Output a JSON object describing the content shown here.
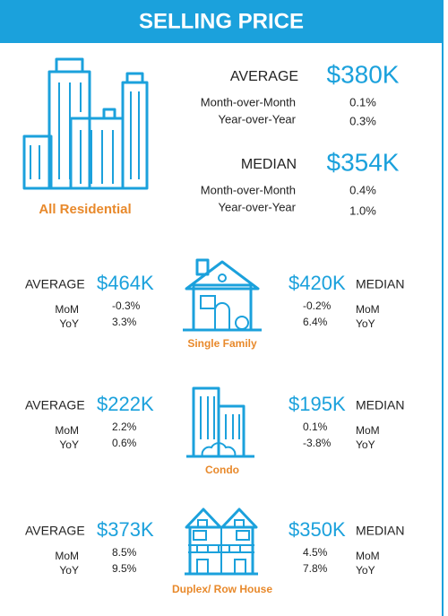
{
  "header": {
    "title": "SELLING PRICE"
  },
  "all_residential": {
    "label": "All Residential",
    "average": {
      "label": "AVERAGE",
      "value": "$380K",
      "rows": [
        {
          "label": "Month-over-Month",
          "value": "0.1%"
        },
        {
          "label": "Year-over-Year",
          "value": "0.3%"
        }
      ]
    },
    "median": {
      "label": "MEDIAN",
      "value": "$354K",
      "rows": [
        {
          "label": "Month-over-Month",
          "value": "0.4%"
        },
        {
          "label": "Year-over-Year",
          "value": "1.0%"
        }
      ]
    }
  },
  "segments": [
    {
      "label": "Single Family",
      "average": {
        "label": "AVERAGE",
        "value": "$464K",
        "rows": [
          {
            "label": "MoM",
            "value": "-0.3%"
          },
          {
            "label": "YoY",
            "value": "3.3%"
          }
        ]
      },
      "median": {
        "label": "MEDIAN",
        "value": "$420K",
        "rows": [
          {
            "label": "MoM",
            "value": "-0.2%"
          },
          {
            "label": "YoY",
            "value": "6.4%"
          }
        ]
      }
    },
    {
      "label": "Condo",
      "average": {
        "label": "AVERAGE",
        "value": "$222K",
        "rows": [
          {
            "label": "MoM",
            "value": "2.2%"
          },
          {
            "label": "YoY",
            "value": "0.6%"
          }
        ]
      },
      "median": {
        "label": "MEDIAN",
        "value": "$195K",
        "rows": [
          {
            "label": "MoM",
            "value": "0.1%"
          },
          {
            "label": "YoY",
            "value": "-3.8%"
          }
        ]
      }
    },
    {
      "label": "Duplex/ Row House",
      "average": {
        "label": "AVERAGE",
        "value": "$373K",
        "rows": [
          {
            "label": "MoM",
            "value": "8.5%"
          },
          {
            "label": "YoY",
            "value": "9.5%"
          }
        ]
      },
      "median": {
        "label": "MEDIAN",
        "value": "$350K",
        "rows": [
          {
            "label": "MoM",
            "value": "4.5%"
          },
          {
            "label": "YoY",
            "value": "7.8%"
          }
        ]
      }
    }
  ]
}
